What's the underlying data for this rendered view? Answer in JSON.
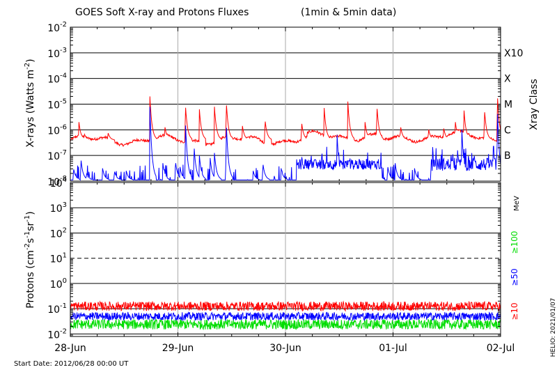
{
  "chart_data": {
    "type": "line",
    "title": "GOES Soft X-ray and Protons Fluxes",
    "title_note": "(1min & 5min data)",
    "start_label": "Start Date: 2012/06/28 00:00 UT",
    "credit": "HELIO: 2021/01/07",
    "x_tick_labels": [
      "28-Jun",
      "29-Jun",
      "30-Jun",
      "01-Jul",
      "02-Jul"
    ],
    "x_range_days": [
      0,
      4
    ],
    "xray_panel": {
      "ylabel_text": "X-rays (Watts m",
      "ylabel_sup": "-2",
      "ylabel_close": ")",
      "y_scale": "log",
      "y_range_exp": [
        -8,
        -2
      ],
      "y_ticks": [
        {
          "exp": -2,
          "base": "10",
          "sup": "-2"
        },
        {
          "exp": -3,
          "base": "10",
          "sup": "-3"
        },
        {
          "exp": -4,
          "base": "10",
          "sup": "-4"
        },
        {
          "exp": -5,
          "base": "10",
          "sup": "-5"
        },
        {
          "exp": -6,
          "base": "10",
          "sup": "-6"
        },
        {
          "exp": -7,
          "base": "10",
          "sup": "-7"
        },
        {
          "exp": -8,
          "base": "10",
          "sup": "-8"
        }
      ],
      "class_axis_title": "Xray Class",
      "classes": [
        {
          "label": "X10",
          "exp": -3
        },
        {
          "label": "X",
          "exp": -4
        },
        {
          "label": "M",
          "exp": -5
        },
        {
          "label": "C",
          "exp": -6
        },
        {
          "label": "B",
          "exp": -7
        }
      ],
      "grid_exps": [
        -3,
        -4,
        -5,
        -6,
        -7
      ],
      "series": [
        {
          "color": "#ff0000",
          "baseline_exp": -6.4,
          "peaks": [
            [
              0.08,
              -5.7
            ],
            [
              0.13,
              -6.15
            ],
            [
              0.35,
              -6.1
            ],
            [
              0.74,
              -4.7
            ],
            [
              0.88,
              -5.9
            ],
            [
              1.07,
              -5.0
            ],
            [
              1.2,
              -5.2
            ],
            [
              1.34,
              -5.1
            ],
            [
              1.45,
              -4.9
            ],
            [
              1.6,
              -5.85
            ],
            [
              1.81,
              -5.6
            ],
            [
              2.15,
              -5.7
            ],
            [
              2.36,
              -5.15
            ],
            [
              2.58,
              -4.9
            ],
            [
              2.74,
              -5.7
            ],
            [
              2.85,
              -5.05
            ],
            [
              3.07,
              -5.85
            ],
            [
              3.33,
              -5.95
            ],
            [
              3.47,
              -5.9
            ],
            [
              3.58,
              -5.7
            ],
            [
              3.66,
              -5.25
            ],
            [
              3.85,
              -5.2
            ],
            [
              3.97,
              -4.6
            ]
          ]
        },
        {
          "color": "#0000ff",
          "baseline_exp": -7.95,
          "peaks": [
            [
              0.03,
              -7.5
            ],
            [
              0.1,
              -7.2
            ],
            [
              0.15,
              -7.7
            ],
            [
              0.3,
              -7.5
            ],
            [
              0.41,
              -7.6
            ],
            [
              0.52,
              -7.6
            ],
            [
              0.74,
              -5.1
            ],
            [
              0.86,
              -7.3
            ],
            [
              0.98,
              -7.3
            ],
            [
              1.02,
              -7.45
            ],
            [
              1.07,
              -5.6
            ],
            [
              1.15,
              -6.6
            ],
            [
              1.2,
              -7.0
            ],
            [
              1.3,
              -7.1
            ],
            [
              1.34,
              -6.9
            ],
            [
              1.45,
              -5.7
            ],
            [
              1.7,
              -7.6
            ],
            [
              1.79,
              -7.3
            ],
            [
              1.96,
              -7.5
            ],
            [
              2.28,
              -7.4
            ],
            [
              2.34,
              -7.5
            ],
            [
              2.48,
              -6.2
            ],
            [
              2.62,
              -7.6
            ],
            [
              2.69,
              -7.4
            ],
            [
              2.8,
              -7.7
            ],
            [
              2.86,
              -7.3
            ],
            [
              2.95,
              -7.4
            ],
            [
              3.02,
              -7.3
            ],
            [
              3.2,
              -7.5
            ],
            [
              3.45,
              -7.6
            ],
            [
              3.6,
              -6.8
            ],
            [
              3.64,
              -6.0
            ],
            [
              3.75,
              -7.0
            ],
            [
              3.82,
              -7.4
            ],
            [
              3.87,
              -7.5
            ],
            [
              3.93,
              -6.5
            ],
            [
              3.97,
              -5.1
            ]
          ]
        }
      ]
    },
    "proton_panel": {
      "ylabel_text": "Protons (cm",
      "ylabel_sup1": "-2",
      "ylabel_mid1": "s",
      "ylabel_sup2": "-1",
      "ylabel_mid2": "sr",
      "ylabel_sup3": "-1",
      "ylabel_close": ")",
      "y_scale": "log",
      "y_range_exp": [
        -2.1,
        4
      ],
      "y_ticks": [
        {
          "exp": 4,
          "base": "10",
          "sup": "4"
        },
        {
          "exp": 3,
          "base": "10",
          "sup": "3"
        },
        {
          "exp": 2,
          "base": "10",
          "sup": "2"
        },
        {
          "exp": 1,
          "base": "10",
          "sup": "1"
        },
        {
          "exp": 0,
          "base": "10",
          "sup": "0"
        },
        {
          "exp": -1,
          "base": "10",
          "sup": "-1"
        },
        {
          "exp": -2,
          "base": "10",
          "sup": "-2"
        }
      ],
      "grid_exps": [
        3,
        2,
        0,
        -1,
        -2
      ],
      "dashed_exp": 1,
      "energy_unit": "MeV",
      "energy_labels": [
        {
          "label": "≥100",
          "color": "#00dd00"
        },
        {
          "label": "≥50",
          "color": "#0000ff"
        },
        {
          "label": "≥10",
          "color": "#ff0000"
        }
      ],
      "series": [
        {
          "name": "≥10",
          "color": "#ff0000",
          "mean_exp": -0.9,
          "spread_exp": 0.18
        },
        {
          "name": "≥50",
          "color": "#0000ff",
          "mean_exp": -1.3,
          "spread_exp": 0.16
        },
        {
          "name": "≥100",
          "color": "#00dd00",
          "mean_exp": -1.62,
          "spread_exp": 0.2
        }
      ]
    }
  }
}
